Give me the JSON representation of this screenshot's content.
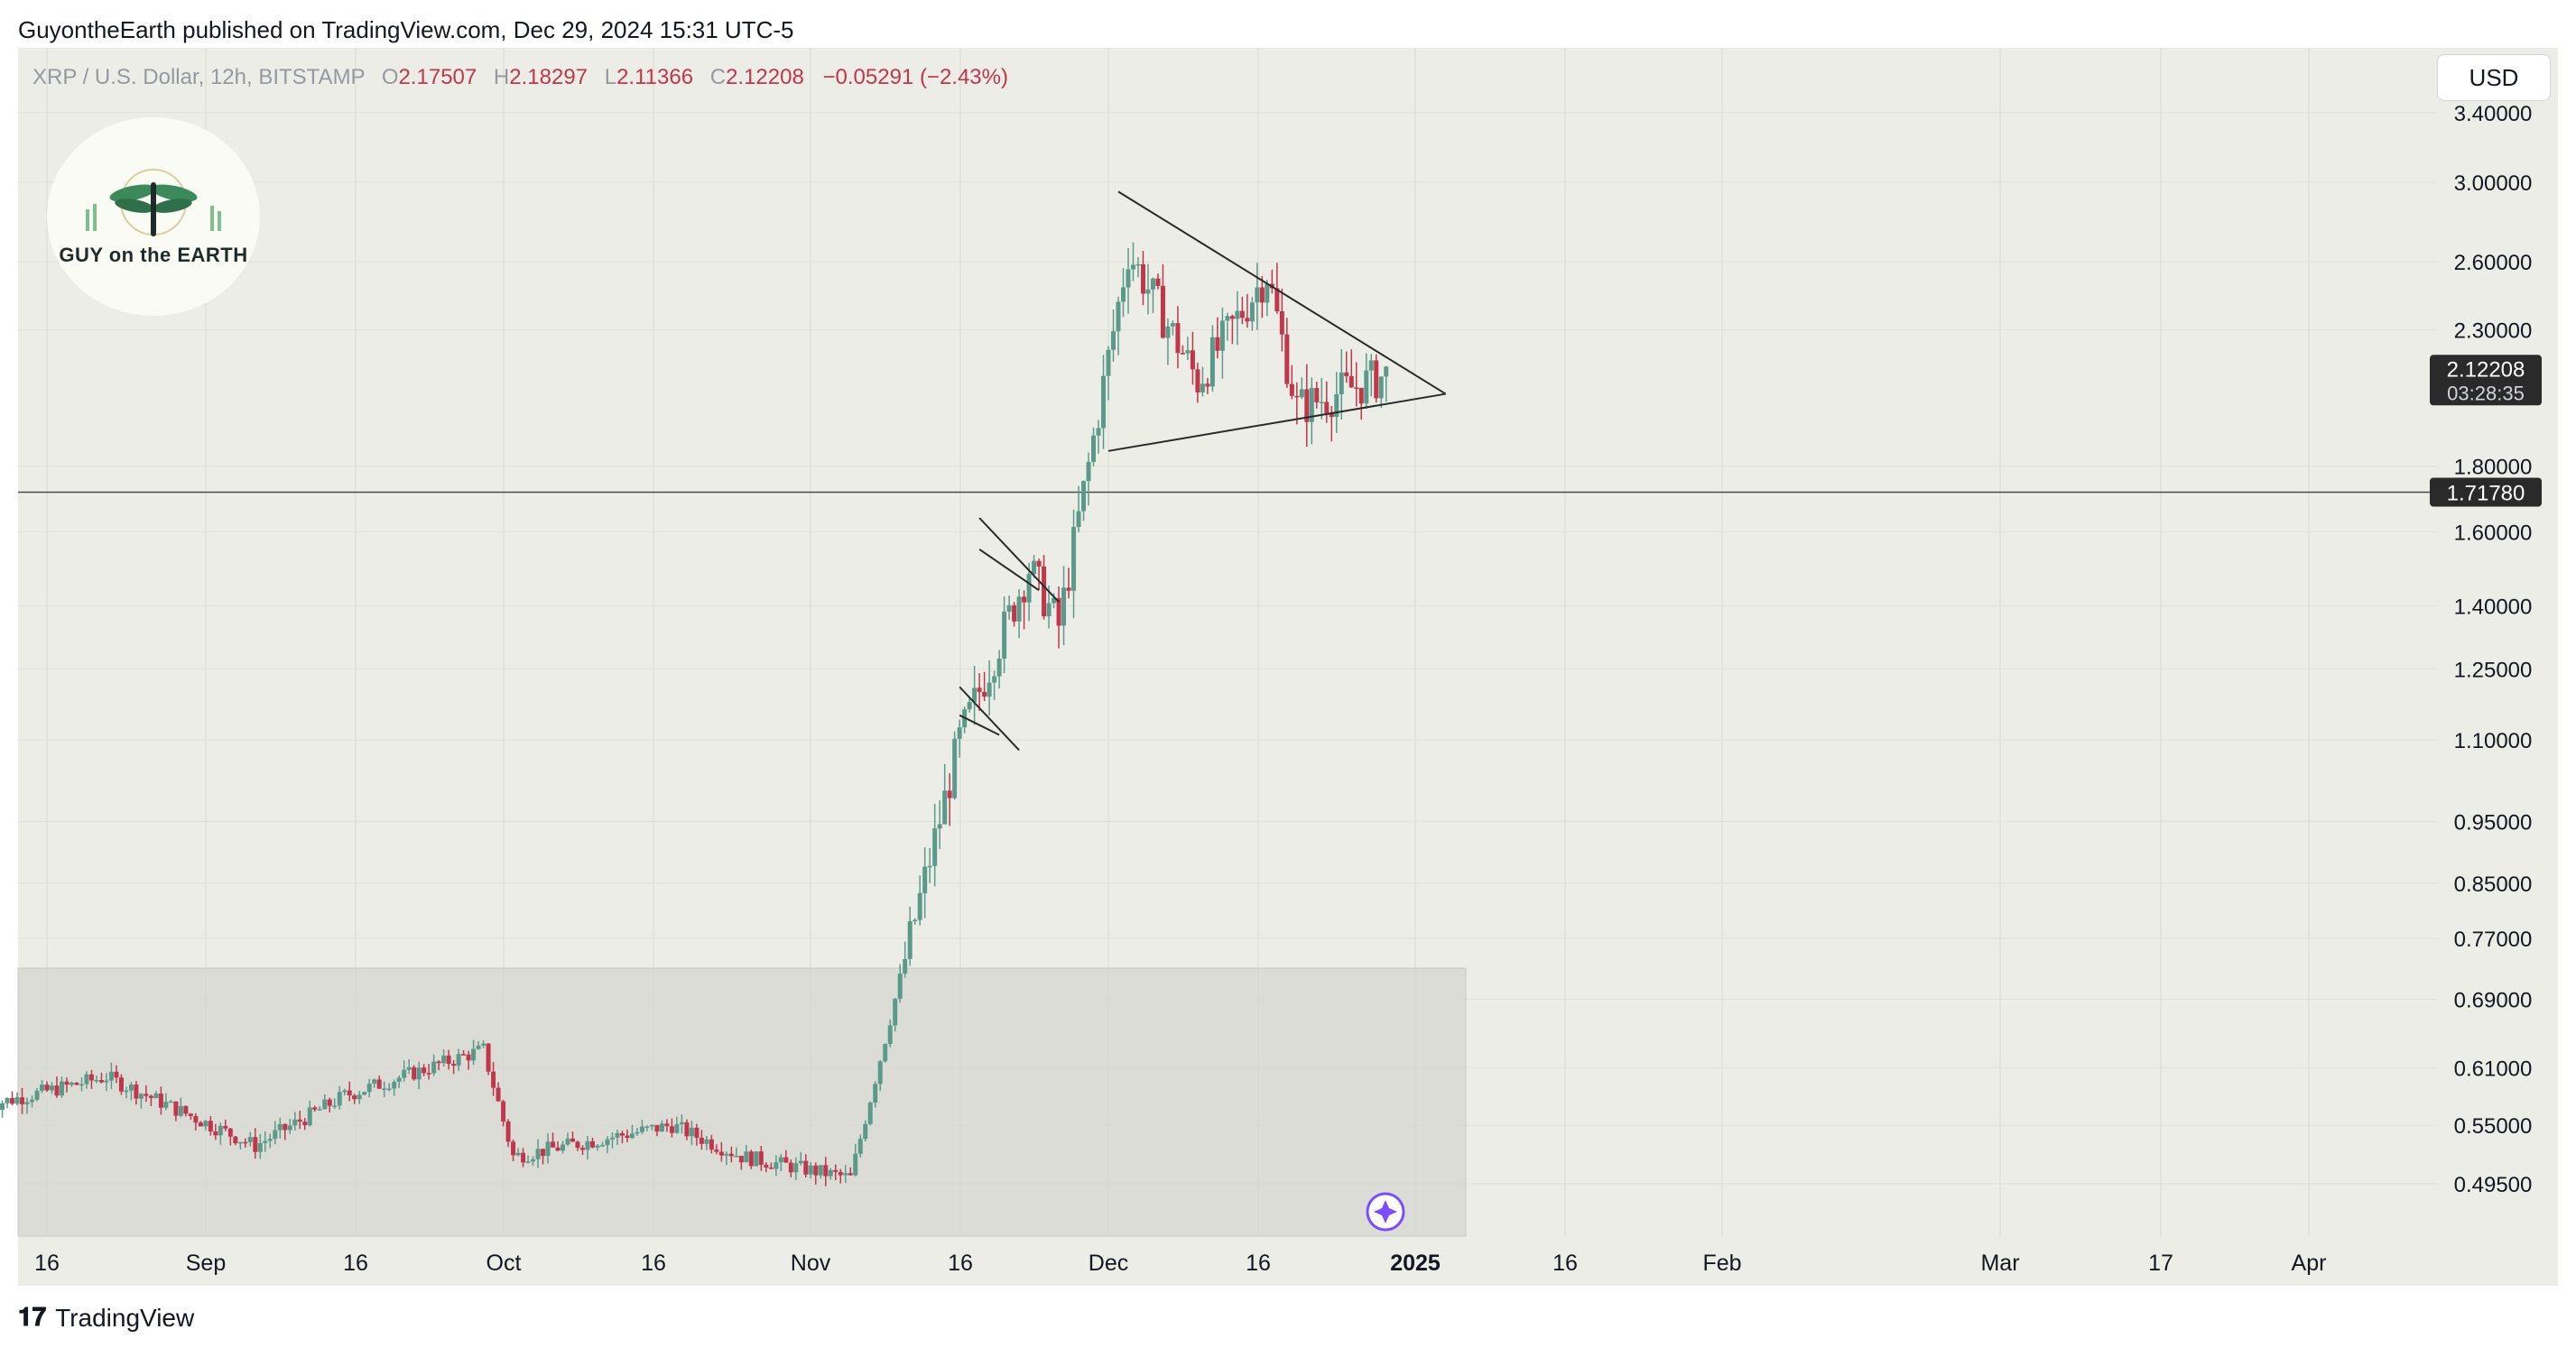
{
  "caption": "GuyontheEarth published on TradingView.com, Dec 29, 2024 15:31 UTC-5",
  "legend": {
    "symbol": "XRP / U.S. Dollar, 12h, BITSTAMP",
    "o_label": "O",
    "o": "2.17507",
    "h_label": "H",
    "h": "2.18297",
    "l_label": "L",
    "l": "2.11366",
    "c_label": "C",
    "c": "2.12208",
    "change": "−0.05291 (−2.43%)"
  },
  "currency_button": "USD",
  "logo": {
    "text": "GUY on the EARTH"
  },
  "footer": {
    "brand": "TradingView"
  },
  "colors": {
    "up": "#5b9a8b",
    "down": "#c2364a",
    "background": "#edede7",
    "zone": "#d6d6d1"
  },
  "chart_data": {
    "type": "candlestick",
    "scale": "log",
    "x_ticks": [
      "16",
      "Sep",
      "16",
      "Oct",
      "16",
      "Nov",
      "16",
      "Dec",
      "16",
      "2025",
      "16",
      "Feb",
      "Mar",
      "17",
      "Apr"
    ],
    "y_ticks": [
      "3.40000",
      "3.00000",
      "2.60000",
      "2.30000",
      "1.80000",
      "1.60000",
      "1.40000",
      "1.25000",
      "1.10000",
      "0.95000",
      "0.85000",
      "0.77000",
      "0.69000",
      "0.61000",
      "0.55000",
      "0.49500"
    ],
    "y_tick_values": [
      3.4,
      3.0,
      2.6,
      2.3,
      1.8,
      1.6,
      1.4,
      1.25,
      1.1,
      0.95,
      0.85,
      0.77,
      0.69,
      0.61,
      0.55,
      0.495
    ],
    "last_price": {
      "value": "2.12208",
      "countdown": "03:28:35"
    },
    "horizontal_line": {
      "value": "1.71780"
    },
    "key_prices": [
      {
        "date": "2024-08-10",
        "price": 0.57
      },
      {
        "date": "2024-08-22",
        "price": 0.6
      },
      {
        "date": "2024-09-06",
        "price": 0.53
      },
      {
        "date": "2024-09-15",
        "price": 0.58
      },
      {
        "date": "2024-09-29",
        "price": 0.63
      },
      {
        "date": "2024-10-02",
        "price": 0.52
      },
      {
        "date": "2024-10-18",
        "price": 0.55
      },
      {
        "date": "2024-10-25",
        "price": 0.52
      },
      {
        "date": "2024-11-05",
        "price": 0.5
      },
      {
        "date": "2024-11-16",
        "price": 1.1
      },
      {
        "date": "2024-11-23",
        "price": 1.5
      },
      {
        "date": "2024-11-26",
        "price": 1.35
      },
      {
        "date": "2024-12-03",
        "price": 2.65
      },
      {
        "date": "2024-12-10",
        "price": 2.1
      },
      {
        "date": "2024-12-17",
        "price": 2.55
      },
      {
        "date": "2024-12-20",
        "price": 2.0
      },
      {
        "date": "2024-12-29",
        "price": 2.12
      }
    ]
  }
}
